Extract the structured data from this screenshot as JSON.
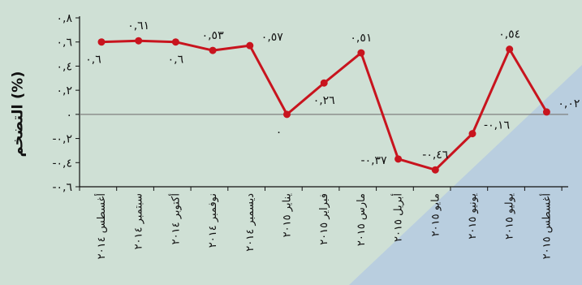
{
  "colors": {
    "background": "#cfe0d5",
    "accent_panel": "#b9cedf",
    "series": "#c8141e",
    "zero_line": "#808080",
    "axis": "#111111"
  },
  "chart_data": {
    "type": "line",
    "ylabel": "التضخم (%)",
    "ylim": [
      -0.6,
      0.8
    ],
    "yticks": [
      -0.6,
      -0.4,
      -0.2,
      0,
      0.2,
      0.4,
      0.6,
      0.8
    ],
    "ytick_labels": [
      "-٠,٦",
      "-٠,٤",
      "-٠,٢",
      "٠",
      "٠,٢",
      "٠,٤",
      "٠,٦",
      "٠,٨"
    ],
    "categories": [
      "أغسطس ٢٠١٤",
      "سبتمبر ٢٠١٤",
      "أكتوبر ٢٠١٤",
      "نوفمبر ٢٠١٤",
      "ديسمبر ٢٠١٤",
      "يناير ٢٠١٥",
      "فبراير ٢٠١٥",
      "مارس ٢٠١٥",
      "أبريل ٢٠١٥",
      "مايو ٢٠١٥",
      "يونيو ٢٠١٥",
      "يوليو ٢٠١٥",
      "أغسطس ٢٠١٥"
    ],
    "values": [
      0.6,
      0.61,
      0.6,
      0.53,
      0.57,
      0.0,
      0.26,
      0.51,
      -0.37,
      -0.46,
      -0.16,
      0.54,
      0.02
    ],
    "data_labels": [
      {
        "index": 0,
        "text": "٠,٦",
        "pos": "below-left"
      },
      {
        "index": 1,
        "text": "٠,٦١",
        "pos": "above"
      },
      {
        "index": 2,
        "text": "٠,٦",
        "pos": "below"
      },
      {
        "index": 3,
        "text": "٠,٥٣",
        "pos": "above"
      },
      {
        "index": 4,
        "text": "٠,٥٧",
        "pos": "right"
      },
      {
        "index": 5,
        "text": "٠",
        "pos": "below-left"
      },
      {
        "index": 6,
        "text": "٠,٢٦",
        "pos": "below"
      },
      {
        "index": 7,
        "text": "٠,٥١",
        "pos": "above"
      },
      {
        "index": 8,
        "text": "-٠,٣٧",
        "pos": "left"
      },
      {
        "index": 9,
        "text": "-٠,٤٦",
        "pos": "above"
      },
      {
        "index": 10,
        "text": "-٠,١٦",
        "pos": "right"
      },
      {
        "index": 11,
        "text": "٠,٥٤",
        "pos": "above"
      },
      {
        "index": 12,
        "text": "٠,٠٢",
        "pos": "right"
      }
    ],
    "grid": false,
    "zero_line": true,
    "legend": "none"
  }
}
